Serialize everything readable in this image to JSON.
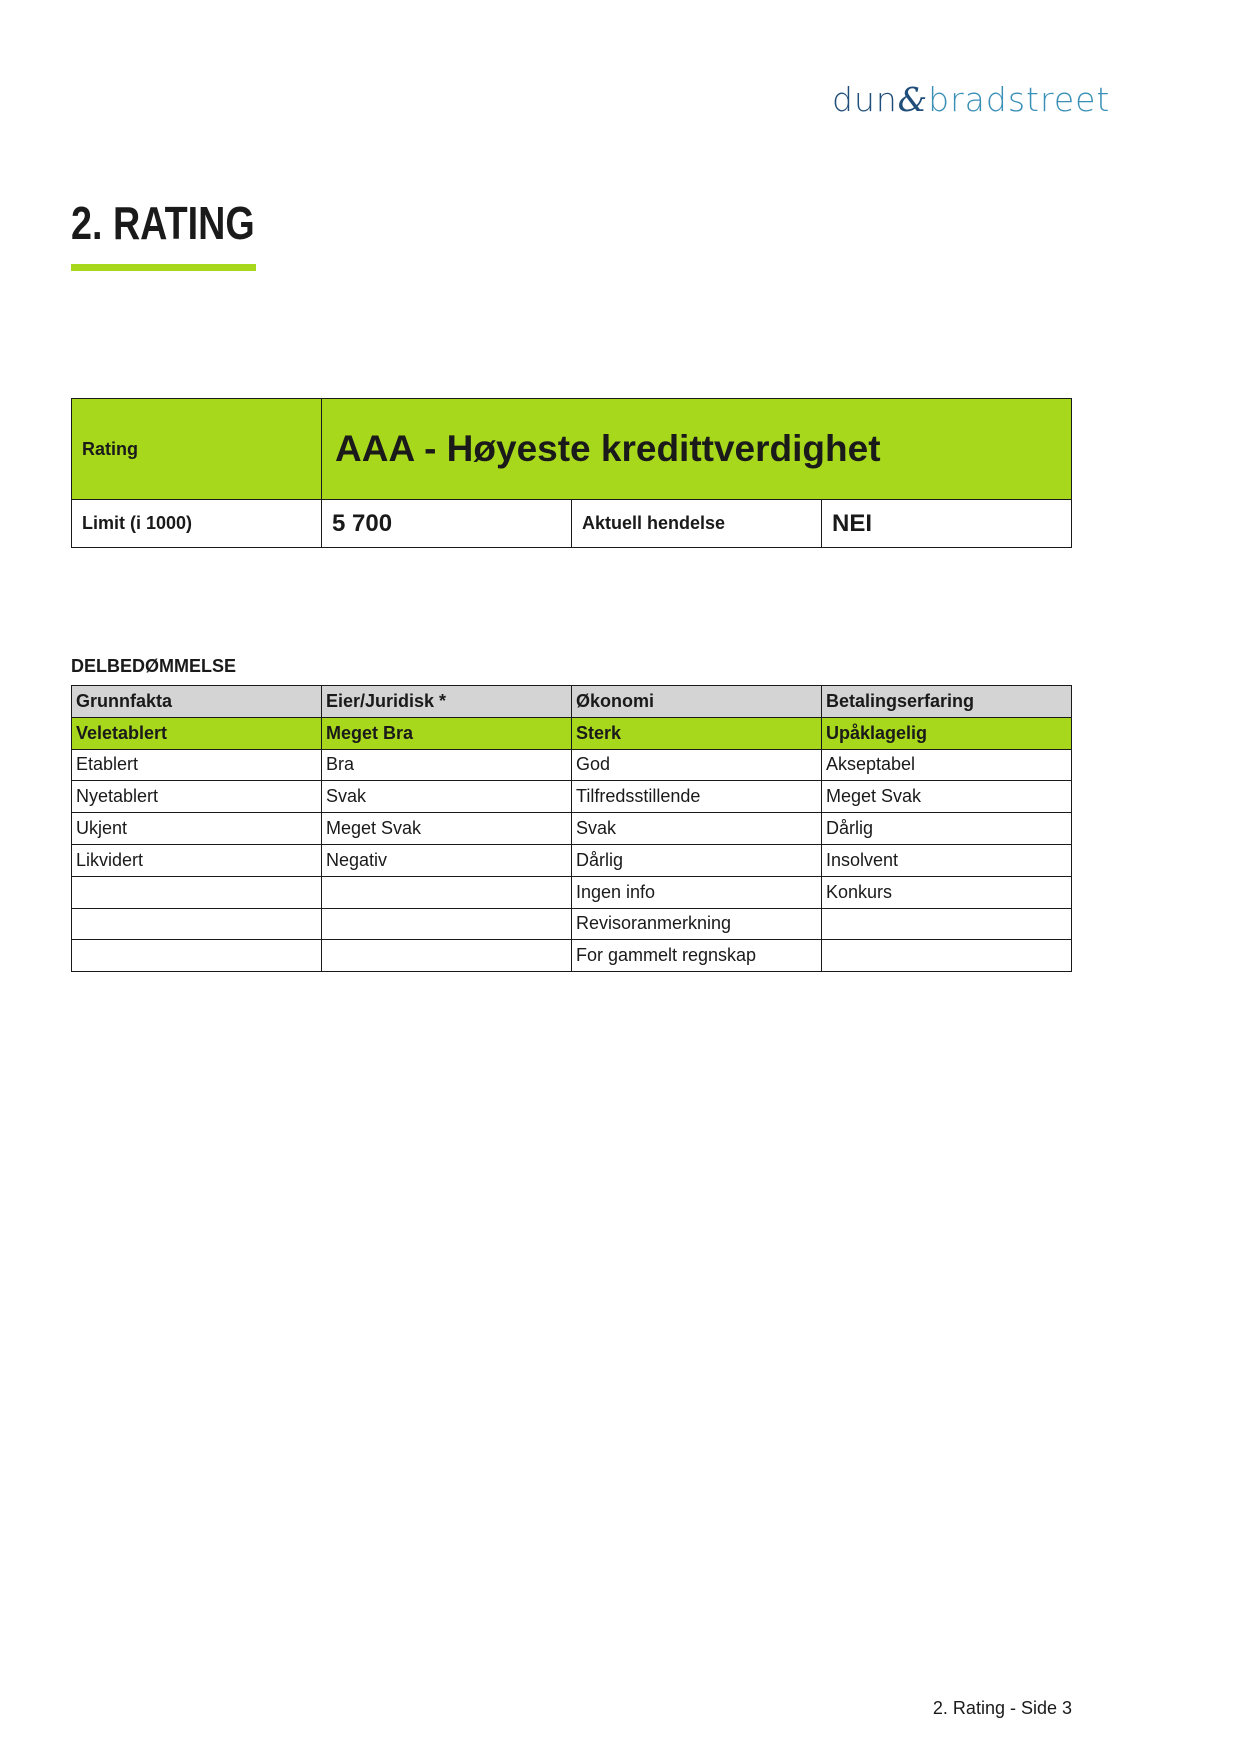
{
  "logo": {
    "text": "dun & bradstreet",
    "part1": "dun",
    "amp": "&",
    "part2": "bradstreet"
  },
  "title": "2. RATING",
  "colors": {
    "accent": "#a8d81c",
    "header_gray": "#d4d4d4",
    "logo_dark": "#1f4e7a",
    "logo_light": "#3a8fb7"
  },
  "rating": {
    "label": "Rating",
    "value": "AAA - Høyeste kredittverdighet",
    "limit_label": "Limit (i 1000)",
    "limit_value": "5 700",
    "event_label": "Aktuell hendelse",
    "event_value": "NEI"
  },
  "delbedommelse": {
    "heading": "DELBEDØMMELSE",
    "columns": [
      "Grunnfakta",
      "Eier/Juridisk *",
      "Økonomi",
      "Betalingserfaring"
    ],
    "selected": [
      "Veletablert",
      "Meget Bra",
      "Sterk",
      "Upåklagelig"
    ],
    "rows": [
      [
        "Etablert",
        "Bra",
        "God",
        "Akseptabel"
      ],
      [
        "Nyetablert",
        "Svak",
        "Tilfredsstillende",
        "Meget Svak"
      ],
      [
        "Ukjent",
        "Meget Svak",
        "Svak",
        "Dårlig"
      ],
      [
        "Likvidert",
        "Negativ",
        "Dårlig",
        "Insolvent"
      ],
      [
        "",
        "",
        "Ingen info",
        "Konkurs"
      ],
      [
        "",
        "",
        "Revisoranmerkning",
        ""
      ],
      [
        "",
        "",
        "For gammelt regnskap",
        ""
      ]
    ]
  },
  "footer": "2. Rating - Side 3"
}
